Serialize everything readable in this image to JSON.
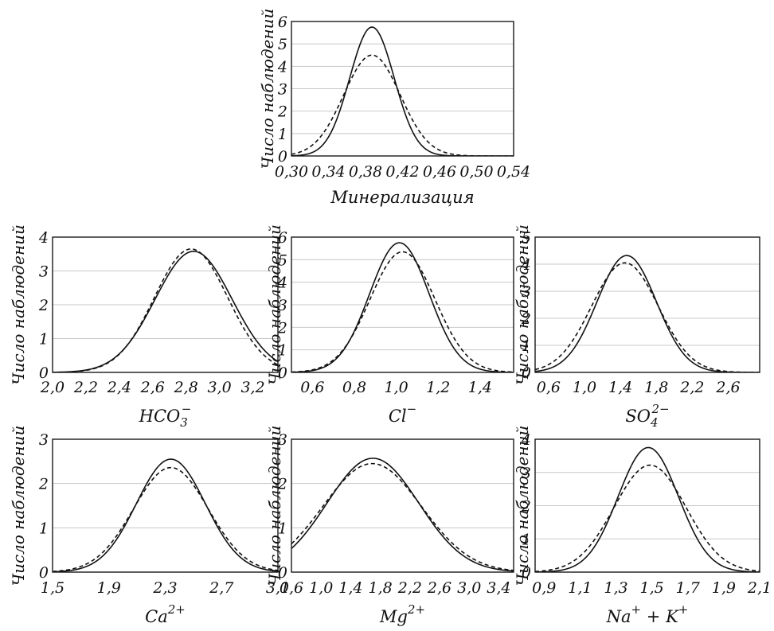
{
  "chart_data": [
    {
      "type": "line",
      "ylabel": "Число наблюдений",
      "xlabel": "Минерализация",
      "xlabel_sup": "",
      "x_ticks": [
        "0,30",
        "0,34",
        "0,38",
        "0,42",
        "0,46",
        "0,50",
        "0,54"
      ],
      "y_ticks": [
        "0",
        "1",
        "2",
        "3",
        "4",
        "5",
        "6"
      ],
      "xlim": [
        0.3,
        0.54
      ],
      "ylim": [
        0,
        6
      ],
      "grid": true,
      "series": [
        {
          "style": "solid",
          "mean": 0.387,
          "sd": 0.024,
          "peak": 5.75
        },
        {
          "style": "dashed",
          "mean": 0.387,
          "sd": 0.0305,
          "peak": 4.5
        }
      ]
    },
    {
      "type": "line",
      "ylabel": "Число наблюдений",
      "xlabel": "HCO",
      "xlabel_sub": "3",
      "xlabel_sup": "−",
      "x_ticks": [
        "2,0",
        "2,2",
        "2,4",
        "2,6",
        "2,8",
        "3,0",
        "3,2"
      ],
      "y_ticks": [
        "0",
        "1",
        "2",
        "3",
        "4"
      ],
      "xlim": [
        2.0,
        3.35
      ],
      "ylim": [
        0,
        4
      ],
      "grid": true,
      "series": [
        {
          "style": "solid",
          "mean": 2.845,
          "sd": 0.23,
          "peak": 3.58
        },
        {
          "style": "dashed",
          "mean": 2.83,
          "sd": 0.22,
          "peak": 3.65
        }
      ]
    },
    {
      "type": "line",
      "ylabel": "Число наблюдений",
      "xlabel": "Cl",
      "xlabel_sub": "",
      "xlabel_sup": "−",
      "x_ticks": [
        "0,6",
        "0,8",
        "1,0",
        "1,2",
        "1,4"
      ],
      "y_ticks": [
        "0",
        "1",
        "2",
        "3",
        "4",
        "5",
        "6"
      ],
      "xlim": [
        0.5,
        1.56
      ],
      "ylim": [
        0,
        6
      ],
      "grid": true,
      "series": [
        {
          "style": "solid",
          "mean": 1.015,
          "sd": 0.142,
          "peak": 5.75
        },
        {
          "style": "dashed",
          "mean": 1.03,
          "sd": 0.155,
          "peak": 5.35
        }
      ]
    },
    {
      "type": "line",
      "ylabel": "Число наблюдений",
      "xlabel": "SO",
      "xlabel_sub": "4",
      "xlabel_sup": "2−",
      "x_ticks": [
        "0,6",
        "1,0",
        "1,4",
        "1,8",
        "2,2",
        "2,6"
      ],
      "y_ticks": [
        "0",
        "1",
        "2",
        "3",
        "4",
        "5"
      ],
      "xlim": [
        0.45,
        2.95
      ],
      "ylim": [
        0,
        5
      ],
      "grid": true,
      "series": [
        {
          "style": "solid",
          "mean": 1.47,
          "sd": 0.33,
          "peak": 4.32
        },
        {
          "style": "dashed",
          "mean": 1.45,
          "sd": 0.37,
          "peak": 4.05
        }
      ]
    },
    {
      "type": "line",
      "ylabel": "Число наблюдений",
      "xlabel": "Ca",
      "xlabel_sub": "",
      "xlabel_sup": "2+",
      "x_ticks": [
        "1,5",
        "1,9",
        "2,3",
        "2,7",
        "3,1"
      ],
      "y_ticks": [
        "0",
        "1",
        "2",
        "3"
      ],
      "xlim": [
        1.5,
        3.1
      ],
      "ylim": [
        0,
        3
      ],
      "grid": true,
      "series": [
        {
          "style": "solid",
          "mean": 2.34,
          "sd": 0.245,
          "peak": 2.55
        },
        {
          "style": "dashed",
          "mean": 2.34,
          "sd": 0.265,
          "peak": 2.36
        }
      ]
    },
    {
      "type": "line",
      "ylabel": "Число наблюдений",
      "xlabel": "Mg",
      "xlabel_sub": "",
      "xlabel_sup": "2+",
      "x_ticks": [
        "0,6",
        "1,0",
        "1,4",
        "1,8",
        "2,2",
        "2,6",
        "3,0",
        "3,4"
      ],
      "y_ticks": [
        "0",
        "1",
        "2",
        "3"
      ],
      "xlim": [
        0.6,
        3.6
      ],
      "ylim": [
        0,
        3
      ],
      "grid": true,
      "series": [
        {
          "style": "solid",
          "mean": 1.7,
          "sd": 0.62,
          "peak": 2.57
        },
        {
          "style": "dashed",
          "mean": 1.69,
          "sd": 0.665,
          "peak": 2.45
        }
      ]
    },
    {
      "type": "line",
      "ylabel": "Число наблюдений",
      "xlabel": "Na",
      "xlabel_sub": "",
      "xlabel_sup": "+",
      "xlabel_tail": " + K",
      "xlabel_tail_sup": "+",
      "x_ticks": [
        "0,9",
        "1,1",
        "1,3",
        "1,5",
        "1,7",
        "1,9",
        "2,1"
      ],
      "y_ticks": [
        "0",
        "1",
        "2",
        "3",
        "4"
      ],
      "xlim": [
        0.85,
        2.1
      ],
      "ylim": [
        0,
        4
      ],
      "grid": true,
      "series": [
        {
          "style": "solid",
          "mean": 1.48,
          "sd": 0.168,
          "peak": 3.75
        },
        {
          "style": "dashed",
          "mean": 1.49,
          "sd": 0.2,
          "peak": 3.22
        }
      ]
    }
  ]
}
